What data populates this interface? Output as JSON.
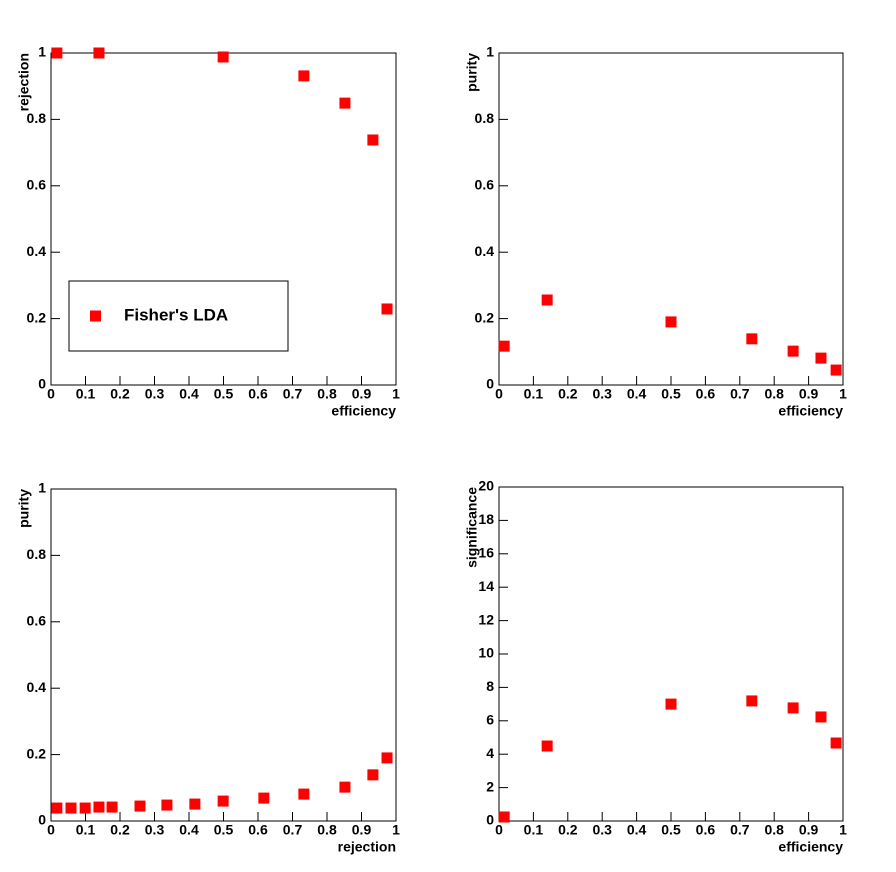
{
  "chart_data": [
    {
      "type": "scatter",
      "xlabel": "efficiency",
      "ylabel": "rejection",
      "x": [
        0.017,
        0.139,
        0.499,
        0.733,
        0.852,
        0.933,
        0.974
      ],
      "series": [
        {
          "name": "Fisher's LDA",
          "color": "#ff0000",
          "values": [
            1.0,
            1.0,
            0.988,
            0.931,
            0.849,
            0.738,
            0.229
          ]
        }
      ],
      "legend": "lower left",
      "xlim": [
        0,
        1
      ],
      "ylim": [
        0,
        1
      ],
      "xticks": [
        0,
        0.1,
        0.2,
        0.3,
        0.4,
        0.5,
        0.6,
        0.7,
        0.8,
        0.9,
        1
      ],
      "yticks": [
        0,
        0.2,
        0.4,
        0.6,
        0.8,
        1
      ]
    },
    {
      "type": "scatter",
      "xlabel": "efficiency",
      "ylabel": "purity",
      "color": "#ff0000",
      "x": [
        0.015,
        0.14,
        0.5,
        0.735,
        0.855,
        0.936,
        0.98
      ],
      "values": [
        0.117,
        0.256,
        0.19,
        0.139,
        0.102,
        0.081,
        0.045
      ],
      "xlim": [
        0,
        1
      ],
      "ylim": [
        0,
        1
      ],
      "xticks": [
        0,
        0.1,
        0.2,
        0.3,
        0.4,
        0.5,
        0.6,
        0.7,
        0.8,
        0.9,
        1
      ],
      "yticks": [
        0,
        0.2,
        0.4,
        0.6,
        0.8,
        1
      ]
    },
    {
      "type": "scatter",
      "xlabel": "rejection",
      "ylabel": "purity",
      "color": "#ff0000",
      "x": [
        0.017,
        0.058,
        0.099,
        0.139,
        0.177,
        0.258,
        0.336,
        0.417,
        0.499,
        0.617,
        0.733,
        0.852,
        0.933,
        0.974
      ],
      "values": [
        0.039,
        0.039,
        0.039,
        0.042,
        0.042,
        0.045,
        0.048,
        0.051,
        0.06,
        0.069,
        0.081,
        0.102,
        0.139,
        0.19
      ],
      "xlim": [
        0,
        1
      ],
      "ylim": [
        0,
        1
      ],
      "xticks": [
        0,
        0.1,
        0.2,
        0.3,
        0.4,
        0.5,
        0.6,
        0.7,
        0.8,
        0.9,
        1
      ],
      "yticks": [
        0,
        0.2,
        0.4,
        0.6,
        0.8,
        1
      ]
    },
    {
      "type": "scatter",
      "xlabel": "efficiency",
      "ylabel": "significance",
      "color": "#ff0000",
      "x": [
        0.015,
        0.14,
        0.5,
        0.735,
        0.855,
        0.936,
        0.98
      ],
      "values": [
        0.24,
        4.49,
        7.0,
        7.19,
        6.77,
        6.23,
        4.67
      ],
      "xlim": [
        0,
        1
      ],
      "ylim": [
        0,
        20
      ],
      "xticks": [
        0,
        0.1,
        0.2,
        0.3,
        0.4,
        0.5,
        0.6,
        0.7,
        0.8,
        0.9,
        1
      ],
      "yticks": [
        0,
        2,
        4,
        6,
        8,
        10,
        12,
        14,
        16,
        18,
        20
      ]
    }
  ]
}
